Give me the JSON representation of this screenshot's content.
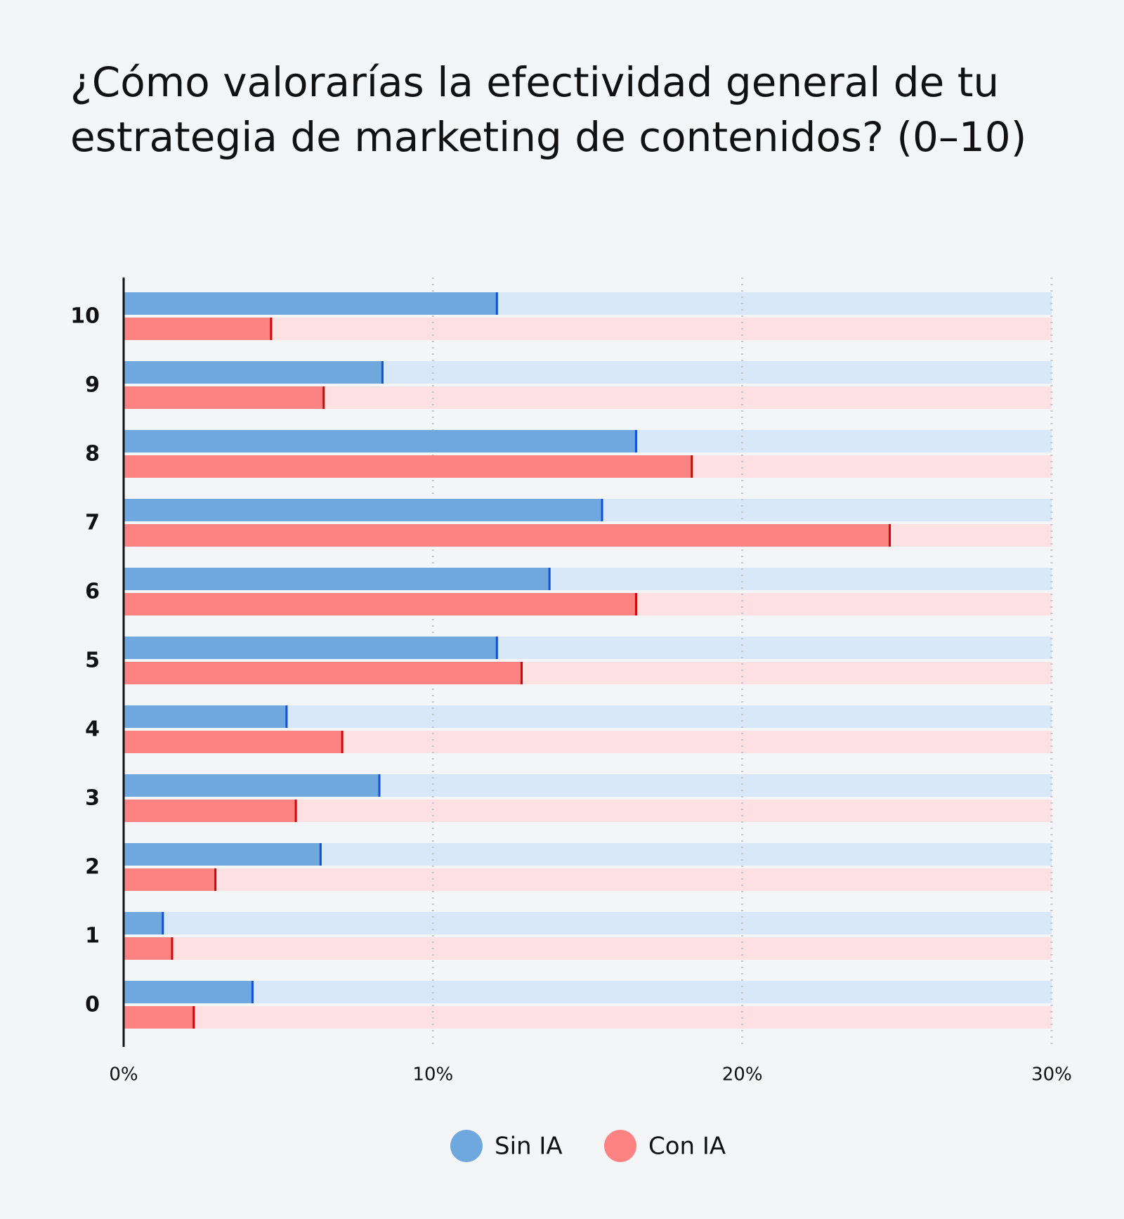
{
  "chart_data": {
    "type": "bar",
    "orientation": "horizontal",
    "title": "¿Cómo valorarías la efectividad general de tu estrategia de marketing de contenidos? (0–10)",
    "categories": [
      "10",
      "9",
      "8",
      "7",
      "6",
      "5",
      "4",
      "3",
      "2",
      "1",
      "0"
    ],
    "series": [
      {
        "name": "Sin IA",
        "color": "#6fa8de",
        "values": [
          12.1,
          8.4,
          16.6,
          15.5,
          13.8,
          12.1,
          5.3,
          8.3,
          6.4,
          1.3,
          4.2
        ]
      },
      {
        "name": "Con IA",
        "color": "#ff8282",
        "values": [
          4.8,
          6.5,
          18.4,
          24.8,
          16.6,
          12.9,
          7.1,
          5.6,
          3.0,
          1.6,
          2.3
        ]
      }
    ],
    "xlim": [
      0,
      30
    ],
    "xticks": [
      {
        "value": 0,
        "label": "0%"
      },
      {
        "value": 10,
        "label": "10%"
      },
      {
        "value": 20,
        "label": "20%"
      },
      {
        "value": 30,
        "label": "30%"
      }
    ],
    "grid": true
  }
}
